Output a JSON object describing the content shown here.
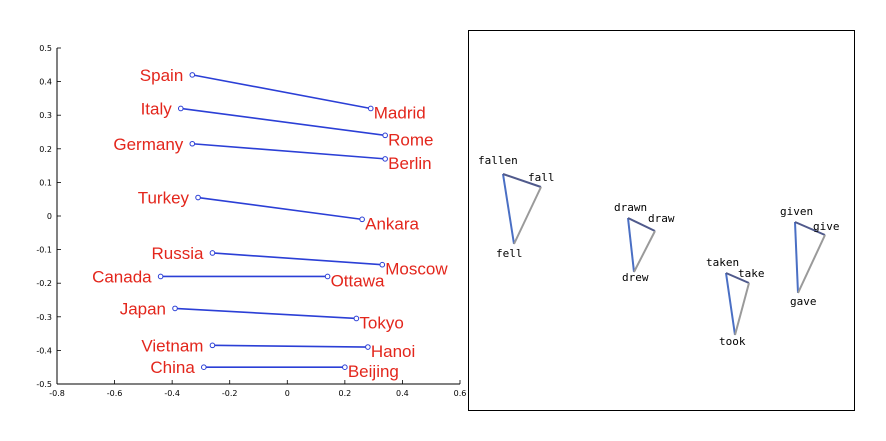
{
  "chart_data": [
    {
      "type": "scatter",
      "title": "",
      "xlabel": "",
      "ylabel": "",
      "xlim": [
        -0.8,
        0.6
      ],
      "ylim": [
        -0.5,
        0.5
      ],
      "xticks": [
        "-0.8",
        "-0.6",
        "-0.4",
        "-0.2",
        "0",
        "0.2",
        "0.4",
        "0.6"
      ],
      "yticks": [
        "0.5",
        "0.4",
        "0.3",
        "0.2",
        "0.1",
        "0",
        "-0.1",
        "-0.2",
        "-0.3",
        "-0.4",
        "-0.5"
      ],
      "grid": false,
      "label_color": "#e3261c",
      "line_color": "#2b3fd6",
      "pairs": [
        {
          "country": "Spain",
          "capital": "Madrid",
          "country_xy": [
            -0.33,
            0.42
          ],
          "capital_xy": [
            0.29,
            0.32
          ]
        },
        {
          "country": "Italy",
          "capital": "Rome",
          "country_xy": [
            -0.37,
            0.32
          ],
          "capital_xy": [
            0.34,
            0.24
          ]
        },
        {
          "country": "Germany",
          "capital": "Berlin",
          "country_xy": [
            -0.33,
            0.215
          ],
          "capital_xy": [
            0.34,
            0.17
          ]
        },
        {
          "country": "Turkey",
          "capital": "Ankara",
          "country_xy": [
            -0.31,
            0.055
          ],
          "capital_xy": [
            0.26,
            -0.01
          ]
        },
        {
          "country": "Russia",
          "capital": "Moscow",
          "country_xy": [
            -0.26,
            -0.11
          ],
          "capital_xy": [
            0.33,
            -0.145
          ]
        },
        {
          "country": "Canada",
          "capital": "Ottawa",
          "country_xy": [
            -0.44,
            -0.18
          ],
          "capital_xy": [
            0.14,
            -0.18
          ]
        },
        {
          "country": "Japan",
          "capital": "Tokyo",
          "country_xy": [
            -0.39,
            -0.275
          ],
          "capital_xy": [
            0.24,
            -0.305
          ]
        },
        {
          "country": "Vietnam",
          "capital": "Hanoi",
          "country_xy": [
            -0.26,
            -0.385
          ],
          "capital_xy": [
            0.28,
            -0.39
          ]
        },
        {
          "country": "China",
          "capital": "Beijing",
          "country_xy": [
            -0.29,
            -0.45
          ],
          "capital_xy": [
            0.2,
            -0.45
          ]
        }
      ]
    },
    {
      "type": "scatter",
      "title": "",
      "grid": false,
      "edge_colors": {
        "past_to_base": "#4a6fc4",
        "base_to_participle": "#505a8c",
        "participle_to_past": "#9a9a9a"
      },
      "triples": [
        {
          "participle": "fallen",
          "base": "fall",
          "past": "fell"
        },
        {
          "participle": "drawn",
          "base": "draw",
          "past": "drew"
        },
        {
          "participle": "taken",
          "base": "take",
          "past": "took"
        },
        {
          "participle": "given",
          "base": "give",
          "past": "gave"
        }
      ]
    }
  ]
}
